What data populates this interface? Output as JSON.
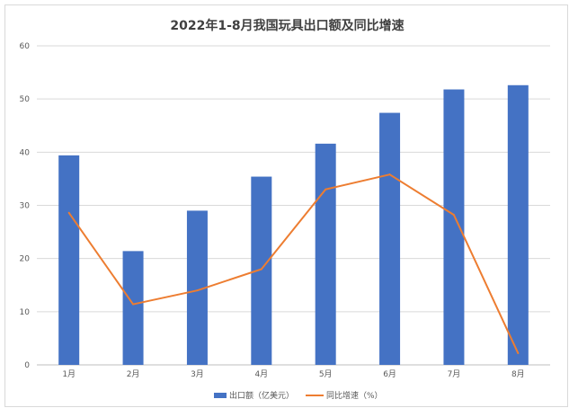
{
  "chart_data": {
    "type": "bar",
    "title": "2022年1-8月我国玩具出口额及同比增速",
    "categories": [
      "1月",
      "2月",
      "3月",
      "4月",
      "5月",
      "6月",
      "7月",
      "8月"
    ],
    "ylim": [
      0,
      60
    ],
    "yticks": [
      0,
      10,
      20,
      30,
      40,
      50,
      60
    ],
    "grid": true,
    "legend_position": "bottom",
    "series": [
      {
        "name": "出口额（亿美元）",
        "type": "bar",
        "color": "#4472c4",
        "values": [
          39.4,
          21.4,
          29.0,
          35.4,
          41.6,
          47.4,
          51.8,
          52.6
        ]
      },
      {
        "name": "同比增速（%）",
        "type": "line",
        "color": "#ed7d31",
        "values": [
          28.6,
          11.4,
          14.0,
          18.0,
          33.0,
          35.8,
          28.2,
          2.2
        ]
      }
    ]
  }
}
